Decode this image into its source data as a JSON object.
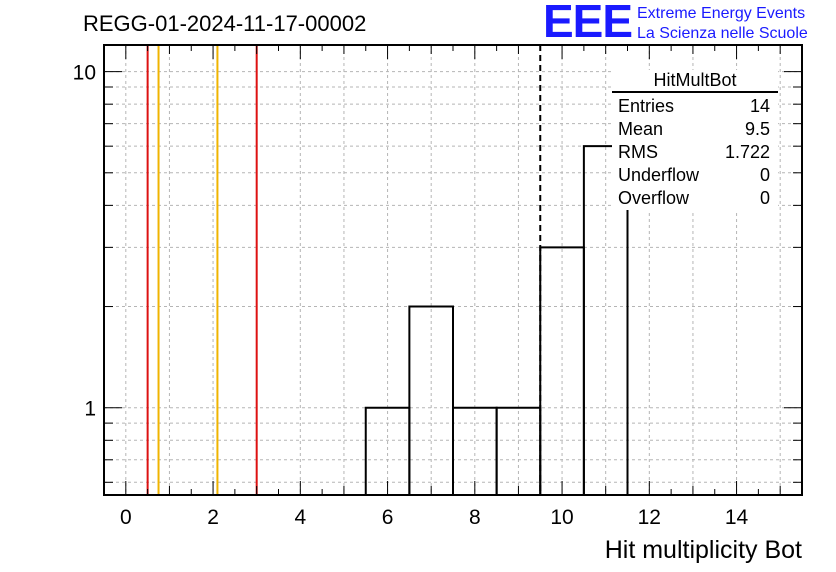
{
  "title": "REGG-01-2024-11-17-00002",
  "logo": {
    "mark": "EEE",
    "line1": "Extreme Energy Events",
    "line2": "La Scienza nelle Scuole",
    "color": "#1a1aff"
  },
  "stats": {
    "name": "HitMultBot",
    "rows": [
      {
        "label": "Entries",
        "value": "14"
      },
      {
        "label": "Mean",
        "value": "9.5"
      },
      {
        "label": "RMS",
        "value": "1.722"
      },
      {
        "label": "Underflow",
        "value": "0"
      },
      {
        "label": "Overflow",
        "value": "0"
      }
    ]
  },
  "chart_data": {
    "type": "histogram",
    "title": "REGG-01-2024-11-17-00002",
    "xlabel": "Hit multiplicity Bot",
    "ylabel": "",
    "xlim": [
      -0.5,
      15.5
    ],
    "ylim": [
      0.55,
      12
    ],
    "yscale": "log",
    "grid": true,
    "x_ticks": [
      0,
      2,
      4,
      6,
      8,
      10,
      12,
      14
    ],
    "y_ticks": [
      1,
      10
    ],
    "bins": [
      {
        "lo": 5.5,
        "hi": 6.5,
        "count": 1
      },
      {
        "lo": 6.5,
        "hi": 7.5,
        "count": 2
      },
      {
        "lo": 7.5,
        "hi": 8.5,
        "count": 1
      },
      {
        "lo": 8.5,
        "hi": 9.5,
        "count": 1
      },
      {
        "lo": 9.5,
        "hi": 10.5,
        "count": 3
      },
      {
        "lo": 10.5,
        "hi": 11.5,
        "count": 6
      }
    ],
    "reference_lines": [
      {
        "x": 0.5,
        "color": "#dd1111",
        "style": "solid"
      },
      {
        "x": 0.75,
        "color": "#f0b400",
        "style": "solid"
      },
      {
        "x": 2.1,
        "color": "#f0b400",
        "style": "solid"
      },
      {
        "x": 3.0,
        "color": "#dd1111",
        "style": "solid"
      },
      {
        "x": 9.5,
        "color": "#000000",
        "style": "dashed"
      }
    ]
  }
}
